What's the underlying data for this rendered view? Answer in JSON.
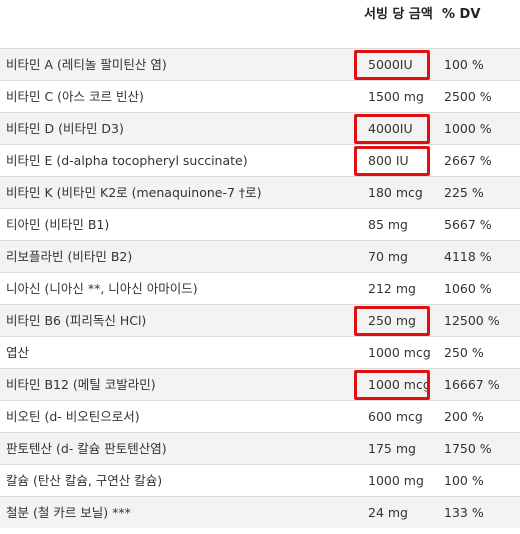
{
  "header": {
    "amount_label": "서빙 당 금액",
    "dv_label": "% DV"
  },
  "rows": [
    {
      "name": "비타민 A (레티놀 팔미틴산 염)",
      "amount": "5000IU",
      "dv": "100 %",
      "highlight": true
    },
    {
      "name": "비타민 C (아스 코르 빈산)",
      "amount": "1500 mg",
      "dv": "2500 %",
      "highlight": false
    },
    {
      "name": "비타민 D (비타민 D3)",
      "amount": "4000IU",
      "dv": "1000 %",
      "highlight": true
    },
    {
      "name": "비타민 E (d-alpha tocopheryl succinate)",
      "amount": "800 IU",
      "dv": "2667 %",
      "highlight": true
    },
    {
      "name": "비타민 K (비타민 K2로 (menaquinone-7 †로)",
      "amount": "180 mcg",
      "dv": "225 %",
      "highlight": false
    },
    {
      "name": "티아민 (비타민 B1)",
      "amount": "85 mg",
      "dv": "5667 %",
      "highlight": false
    },
    {
      "name": "리보플라빈 (비타민 B2)",
      "amount": "70 mg",
      "dv": "4118 %",
      "highlight": false
    },
    {
      "name": "니아신 (니아신 **, 니아신 아마이드)",
      "amount": "212 mg",
      "dv": "1060 %",
      "highlight": false
    },
    {
      "name": "비타민 B6 (피리독신 HCl)",
      "amount": "250 mg",
      "dv": "12500 %",
      "highlight": true
    },
    {
      "name": "엽산",
      "amount": "1000 mcg",
      "dv": "250 %",
      "highlight": false
    },
    {
      "name": "비타민 B12 (메틸 코발라민)",
      "amount": "1000 mcg",
      "dv": "16667 %",
      "highlight": true
    },
    {
      "name": "비오틴 (d- 비오틴으로서)",
      "amount": "600 mcg",
      "dv": "200 %",
      "highlight": false
    },
    {
      "name": "판토텐산 (d- 칼슘 판토텐산염)",
      "amount": "175 mg",
      "dv": "1750 %",
      "highlight": false
    },
    {
      "name": "칼슘 (탄산 칼슘, 구연산 칼슘)",
      "amount": "1000 mg",
      "dv": "100 %",
      "highlight": false
    },
    {
      "name": "철분 (철 카르 보닐) ***",
      "amount": "24 mg",
      "dv": "133 %",
      "highlight": false
    }
  ],
  "colors": {
    "highlight_border": "#e01010",
    "row_alt": "#f3f3f3",
    "divider": "#dcdcdc"
  }
}
